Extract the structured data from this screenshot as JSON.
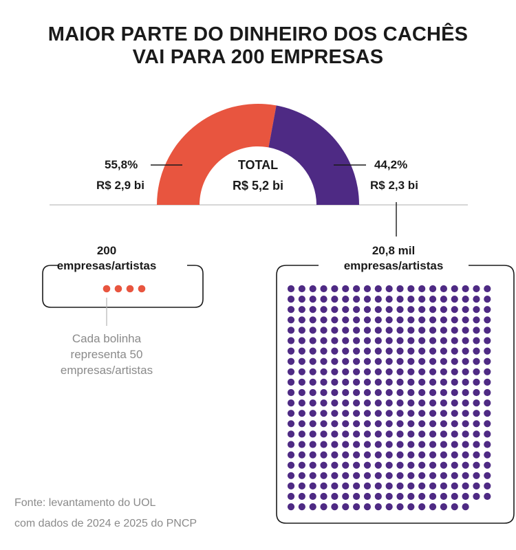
{
  "title": {
    "line1": "MAIOR PARTE DO DINHEIRO DOS CACHÊS",
    "line2": "VAI PARA 200 EMPRESAS"
  },
  "colors": {
    "orange": "#e8553f",
    "purple": "#4e2a84",
    "line": "#b5b5b5"
  },
  "chart_data": {
    "type": "pie",
    "style": "semicircle-donut",
    "total": {
      "label": "TOTAL",
      "value_label": "R$ 5,2 bi",
      "value": 5.2
    },
    "slices": [
      {
        "name": "200 empresas/artistas",
        "percent": 55.8,
        "percent_label": "55,8%",
        "value": 2.9,
        "value_label": "R$ 2,9 bi",
        "color": "#e8553f"
      },
      {
        "name": "20,8 mil empresas/artistas",
        "percent": 44.2,
        "percent_label": "44,2%",
        "value": 2.3,
        "value_label": "R$ 2,3 bi",
        "color": "#4e2a84"
      }
    ],
    "groups": [
      {
        "count_label": "200",
        "name_label": "empresas/artistas",
        "dots": 4,
        "color": "#e8553f"
      },
      {
        "count_label": "20,8 mil",
        "name_label": "empresas/artistas",
        "dots": 416,
        "color": "#4e2a84"
      }
    ],
    "units_per_dot": 50
  },
  "legend_note": [
    "Cada bolinha",
    "representa 50",
    "empresas/artistas"
  ],
  "source": [
    "Fonte:  levantamento do UOL",
    "com dados de 2024 e 2025 do PNCP"
  ]
}
